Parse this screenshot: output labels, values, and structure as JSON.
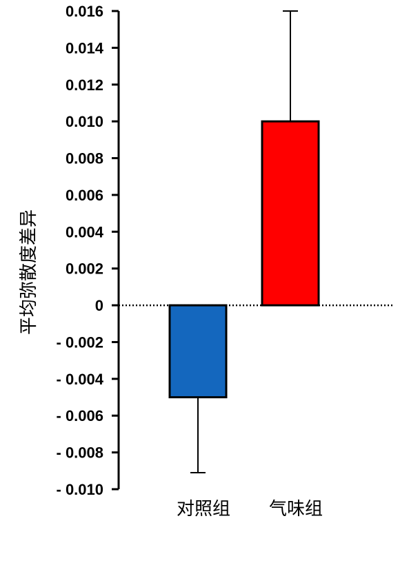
{
  "chart_data": {
    "type": "bar",
    "title": "",
    "xlabel": "",
    "ylabel": "平均弥散度差异",
    "categories": [
      "对照组",
      "气味组"
    ],
    "values": [
      -0.005,
      0.01
    ],
    "error_upper": [
      0,
      0.006
    ],
    "error_lower": [
      0.0041,
      0
    ],
    "colors": [
      "#1467be",
      "#ff0000"
    ],
    "ylim": [
      -0.01,
      0.016
    ],
    "ytick_labels": [
      "0.016",
      "0.014",
      "0.012",
      "0.010",
      "0.008",
      "0.006",
      "0.004",
      "0.002",
      "0",
      "- 0.002",
      "- 0.004",
      "- 0.006",
      "- 0.008",
      "- 0.010"
    ],
    "ytick_values": [
      0.016,
      0.014,
      0.012,
      0.01,
      0.008,
      0.006,
      0.004,
      0.002,
      0,
      -0.002,
      -0.004,
      -0.006,
      -0.008,
      -0.01
    ],
    "zero_line": "dotted",
    "grid": false,
    "legend": "none"
  }
}
